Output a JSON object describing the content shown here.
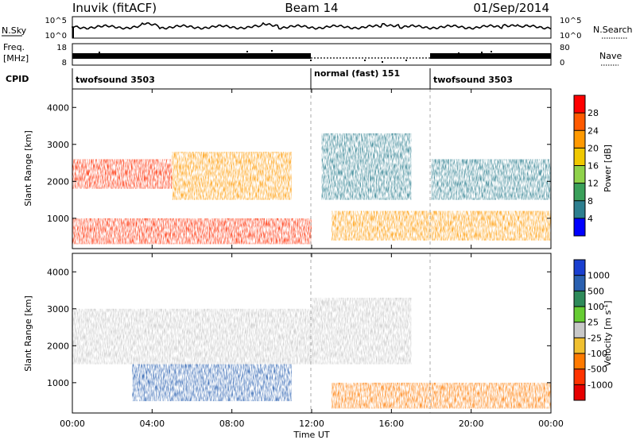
{
  "header": {
    "station": "Inuvik (fitACF)",
    "beam": "Beam 14",
    "date": "01/Sep/2014"
  },
  "noise_panel": {
    "left_label": "N.Sky",
    "left_ticks": [
      "10^5",
      "10^0"
    ],
    "right_ticks": [
      "10^5",
      "10^0"
    ],
    "right_label": "N.Search"
  },
  "freq_panel": {
    "left_label_1": "Freq.",
    "left_label_2": "[MHz]",
    "left_ticks": [
      "18",
      "8"
    ],
    "right_ticks": [
      "80",
      "0"
    ],
    "right_label": "Nave"
  },
  "cpid": {
    "label": "CPID",
    "segments": [
      {
        "name": "twofsound 3503",
        "start_hour": 0
      },
      {
        "name": "normal (fast) 151",
        "start_hour": 12
      },
      {
        "name": "twofsound 3503",
        "start_hour": 18
      }
    ]
  },
  "chart_data": [
    {
      "type": "heatmap",
      "quantity": "Power",
      "ylabel": "Slant Range [km]",
      "xlabel": "Time UT",
      "xlim_hours": [
        0,
        24
      ],
      "ylim": [
        180,
        4500
      ],
      "y_ticks": [
        1000,
        2000,
        3000,
        4000
      ],
      "colorbar": {
        "label": "Power [dB]",
        "ticks": [
          "28",
          "24",
          "20",
          "16",
          "12",
          "8",
          "4"
        ],
        "colors": [
          "#ff0000",
          "#ff5a00",
          "#ff9900",
          "#f0c800",
          "#8fd24a",
          "#3aa05a",
          "#2d7f8f",
          "#0000ff"
        ]
      },
      "echo_regions": [
        {
          "t": [
            0,
            12
          ],
          "r": [
            300,
            1000
          ],
          "level": "strong"
        },
        {
          "t": [
            0,
            5
          ],
          "r": [
            1800,
            2600
          ],
          "level": "strong"
        },
        {
          "t": [
            5,
            11
          ],
          "r": [
            1500,
            2800
          ],
          "level": "moderate"
        },
        {
          "t": [
            12.5,
            17
          ],
          "r": [
            1500,
            3300
          ],
          "level": "weak"
        },
        {
          "t": [
            13,
            24
          ],
          "r": [
            400,
            1200
          ],
          "level": "moderate"
        },
        {
          "t": [
            18,
            24
          ],
          "r": [
            1500,
            2600
          ],
          "level": "weak"
        }
      ]
    },
    {
      "type": "heatmap",
      "quantity": "Velocity",
      "ylabel": "Slant Range [km]",
      "xlabel": "Time UT",
      "xlim_hours": [
        0,
        24
      ],
      "ylim": [
        180,
        4500
      ],
      "y_ticks": [
        1000,
        2000,
        3000,
        4000
      ],
      "colorbar": {
        "label": "Velocity [m s^-1]",
        "ticks": [
          "1000",
          "500",
          "100",
          "25",
          "-25",
          "-100",
          "-500",
          "-1000"
        ],
        "colors": [
          "#1a3fd0",
          "#2a60b0",
          "#2e8a5a",
          "#66cc33",
          "#c8c8c8",
          "#f0c030",
          "#ff7a00",
          "#ff3300",
          "#e60000"
        ]
      },
      "echo_regions": [
        {
          "t": [
            0,
            12
          ],
          "r": [
            1500,
            3000
          ],
          "level": "near zero"
        },
        {
          "t": [
            3,
            11
          ],
          "r": [
            500,
            1500
          ],
          "level": "positive"
        },
        {
          "t": [
            12,
            17
          ],
          "r": [
            1500,
            3300
          ],
          "level": "near zero"
        },
        {
          "t": [
            13,
            24
          ],
          "r": [
            300,
            1000
          ],
          "level": "negative"
        }
      ]
    }
  ],
  "time_axis": {
    "ticks": [
      "00:00",
      "04:00",
      "08:00",
      "12:00",
      "16:00",
      "20:00",
      "00:00"
    ],
    "label": "Time UT"
  }
}
